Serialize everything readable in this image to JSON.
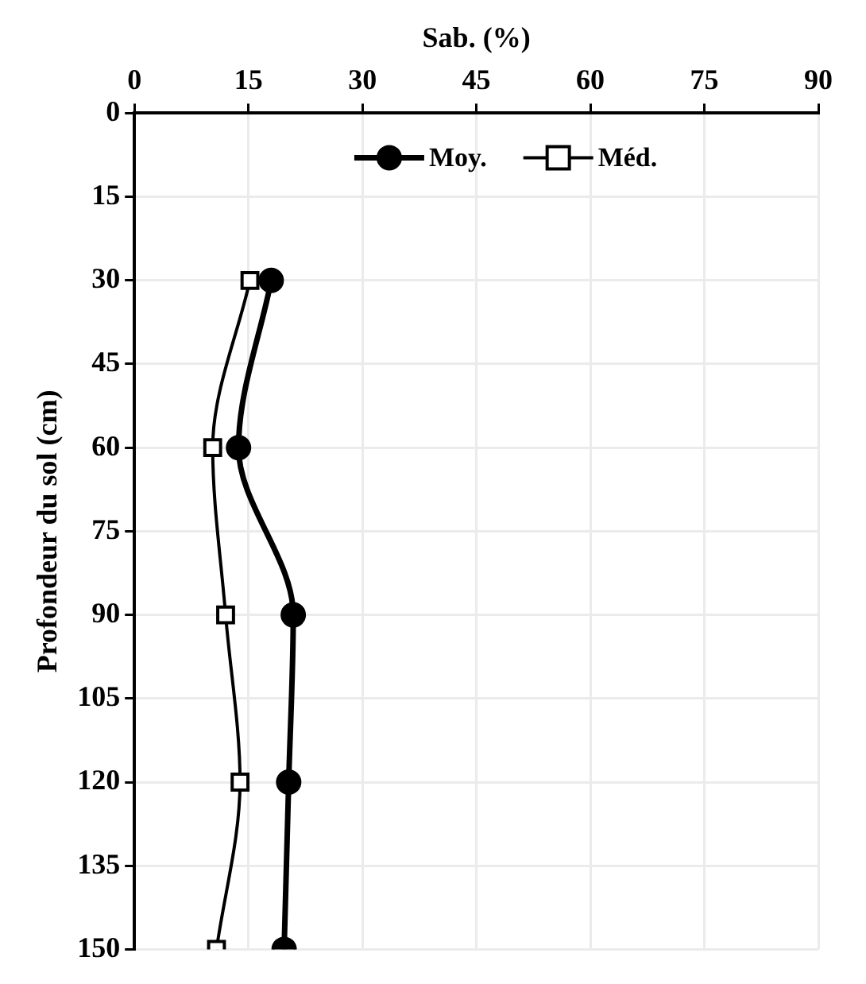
{
  "chart_data": {
    "type": "line",
    "xlabel": "Sab. (%)",
    "ylabel": "Profondeur du sol (cm)",
    "xlim": [
      0,
      90
    ],
    "xticks": [
      0,
      15,
      30,
      45,
      60,
      75,
      90
    ],
    "ylim": [
      150,
      0
    ],
    "yticks": [
      0,
      15,
      30,
      45,
      60,
      75,
      90,
      105,
      120,
      135,
      150
    ],
    "grid": true,
    "legend": "top",
    "series": [
      {
        "name": "Moy.",
        "color": "#000000",
        "marker": "circle",
        "x": [
          18.0,
          13.7,
          20.9,
          20.3,
          19.7
        ],
        "values": [
          30,
          60,
          90,
          120,
          150
        ]
      },
      {
        "name": "Méd.",
        "color": "#000000",
        "marker": "square",
        "x": [
          15.2,
          10.3,
          12.0,
          13.9,
          10.8
        ],
        "values": [
          30,
          60,
          90,
          120,
          150
        ]
      }
    ]
  }
}
